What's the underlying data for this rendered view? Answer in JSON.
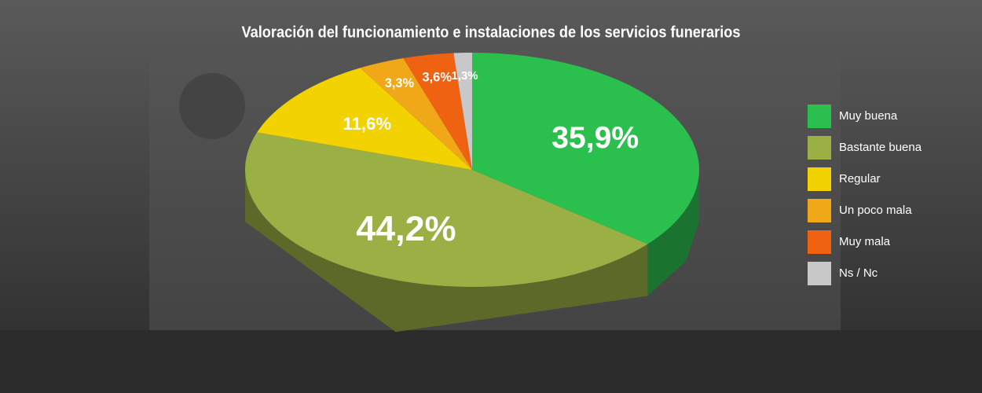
{
  "chart_data": {
    "type": "pie3d",
    "title": "Valoración del funcionamiento e instalaciones de los servicios funerarios",
    "categories": [
      "Muy buena",
      "Bastante buena",
      "Regular",
      "Un poco mala",
      "Muy mala",
      "Ns / Nc"
    ],
    "values": [
      35.9,
      44.2,
      11.6,
      3.3,
      3.6,
      1.3
    ],
    "value_labels": [
      "35,9%",
      "44,2%",
      "11,6%",
      "3,3%",
      "3,6%",
      "1,3%"
    ],
    "colors": [
      "#2bbf4e",
      "#9aaf44",
      "#f2d200",
      "#f0a818",
      "#ee6212",
      "#c8c8c8"
    ],
    "legend": "right"
  }
}
